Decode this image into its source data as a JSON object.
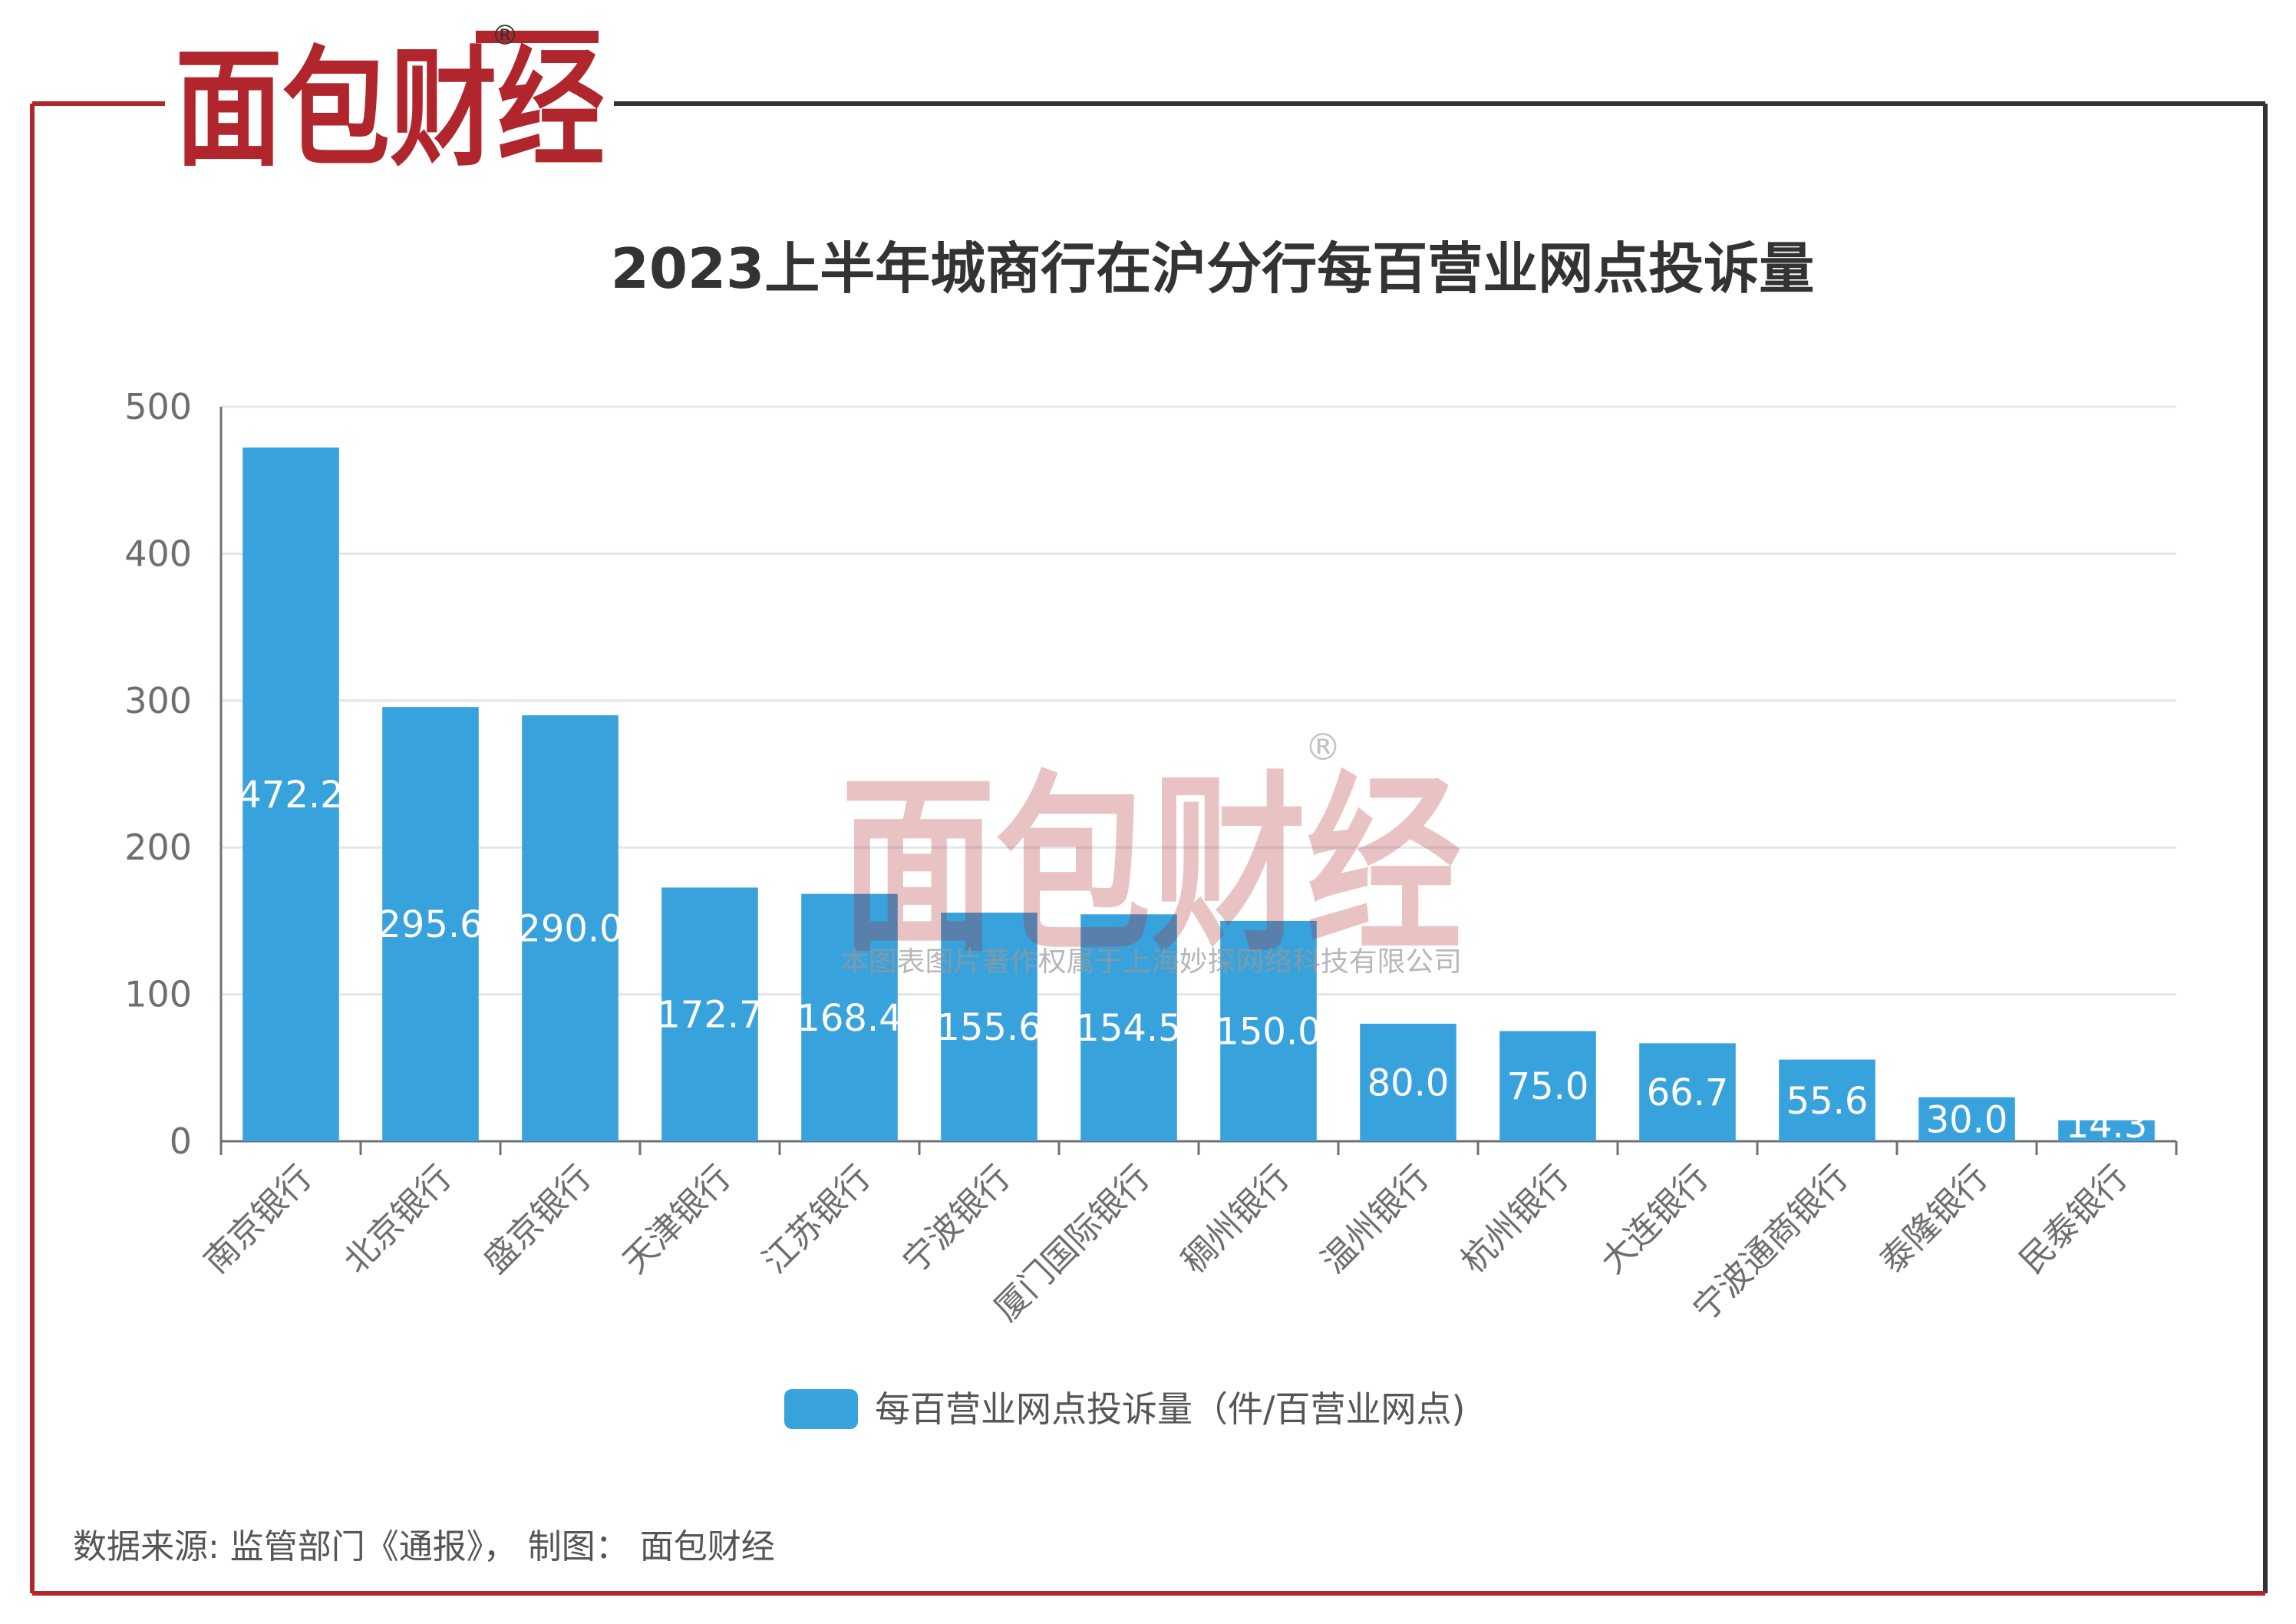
{
  "brand": {
    "logo_text": "面包财经",
    "registered_mark": "®",
    "primary_color": "#b0262c",
    "watermark_text": "面包财经",
    "watermark_sub": "本图表图片著作权属于上海妙探网络科技有限公司"
  },
  "footer": {
    "source": "数据来源: 监管部门《通报》， 制图： 面包财经"
  },
  "chart_data": {
    "type": "bar",
    "title": "2023上半年城商行在沪分行每百营业网点投诉量",
    "categories": [
      "南京银行",
      "北京银行",
      "盛京银行",
      "天津银行",
      "江苏银行",
      "宁波银行",
      "厦门国际银行",
      "稠州银行",
      "温州银行",
      "杭州银行",
      "大连银行",
      "宁波通商银行",
      "泰隆银行",
      "民泰银行"
    ],
    "series": [
      {
        "name": "每百营业网点投诉量（件/百营业网点)",
        "values": [
          472.2,
          295.6,
          290.0,
          172.7,
          168.4,
          155.6,
          154.5,
          150.0,
          80.0,
          75.0,
          66.7,
          55.6,
          30.0,
          14.3
        ],
        "labels": [
          "472.2",
          "295.6",
          "290.0",
          "172.7",
          "168.4",
          "155.6",
          "154.5",
          "150.0",
          "80.0",
          "75.0",
          "66.7",
          "55.6",
          "30.0",
          "14.3"
        ],
        "color": "#38a2dc"
      }
    ],
    "yticks": [
      "0",
      "100",
      "200",
      "300",
      "400",
      "500"
    ],
    "ylim": [
      0,
      500
    ],
    "grid": true,
    "legend_position": "bottom-center"
  }
}
